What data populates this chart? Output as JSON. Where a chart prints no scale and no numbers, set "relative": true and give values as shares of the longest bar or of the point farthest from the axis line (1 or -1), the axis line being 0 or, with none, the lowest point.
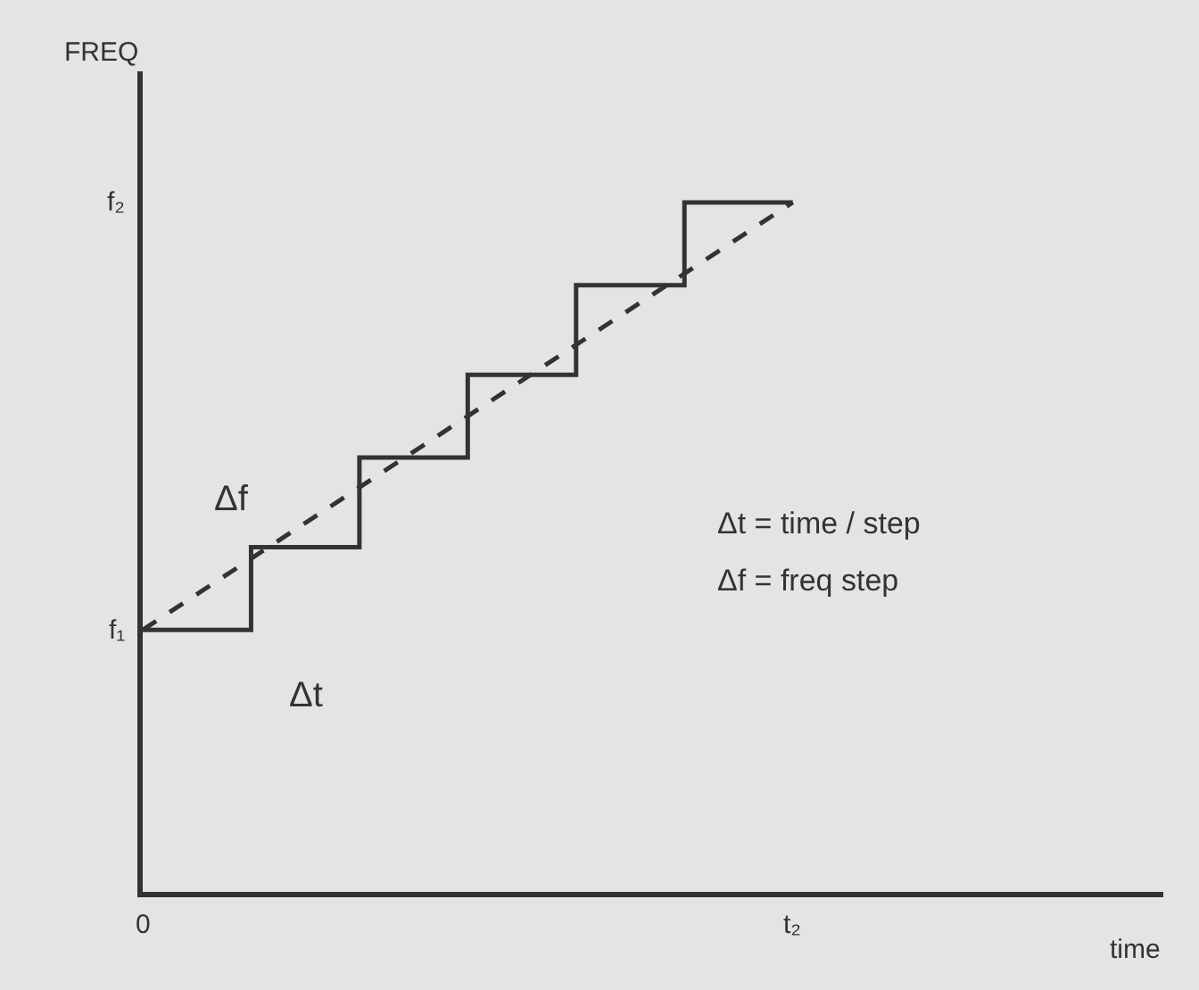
{
  "chart_data": {
    "type": "step",
    "relative": true,
    "categories": [
      null,
      null,
      null,
      null,
      null,
      null,
      null
    ],
    "series": [
      {
        "color": "#333333",
        "line_style": "solid",
        "values": [
          0.38,
          0.5,
          0.63,
          0.75,
          0.88,
          1.0,
          1.0
        ]
      },
      {
        "type": "line",
        "color": "#333333",
        "line_style": "dashed",
        "values": [
          0.38,
          null,
          null,
          null,
          null,
          null,
          1.0
        ]
      }
    ],
    "annotations": [
      "0",
      "t₂",
      "f₁",
      "f₂",
      "Δf",
      "Δt",
      "Δt = time / step",
      "Δf = freq step",
      "time",
      "FREQ"
    ]
  }
}
